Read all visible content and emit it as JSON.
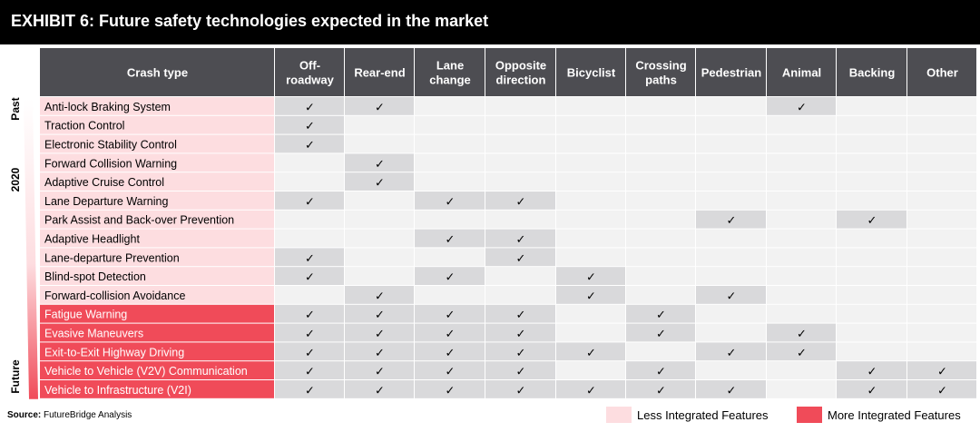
{
  "title": "EXHIBIT 6: Future safety technologies expected in the market",
  "source_label": "Source:",
  "source_text": "FutureBridge Analysis",
  "axis": {
    "top": "Past",
    "middle": "2020",
    "bottom": "Future"
  },
  "legend": [
    {
      "label": "Less Integrated Features",
      "color": "#fddde0"
    },
    {
      "label": "More Integrated Features",
      "color": "#f04b59"
    }
  ],
  "check_mark": "✓",
  "chart_data": {
    "type": "table",
    "title": "EXHIBIT 6: Future safety technologies expected in the market",
    "row_header": "Crash type",
    "columns": [
      [
        "Off-",
        "roadway"
      ],
      [
        "Rear-end"
      ],
      [
        "Lane",
        "change"
      ],
      [
        "Opposite",
        "direction"
      ],
      [
        "Bicyclist"
      ],
      [
        "Crossing",
        "paths"
      ],
      [
        "Pedestrian"
      ],
      [
        "Animal"
      ],
      [
        "Backing"
      ],
      [
        "Other"
      ]
    ],
    "rows": [
      {
        "name": "Anti-lock Braking System",
        "group": "less",
        "checks": [
          1,
          1,
          0,
          0,
          0,
          0,
          0,
          1,
          0,
          0
        ]
      },
      {
        "name": "Traction Control",
        "group": "less",
        "checks": [
          1,
          0,
          0,
          0,
          0,
          0,
          0,
          0,
          0,
          0
        ]
      },
      {
        "name": "Electronic Stability Control",
        "group": "less",
        "checks": [
          1,
          0,
          0,
          0,
          0,
          0,
          0,
          0,
          0,
          0
        ]
      },
      {
        "name": "Forward Collision Warning",
        "group": "less",
        "checks": [
          0,
          1,
          0,
          0,
          0,
          0,
          0,
          0,
          0,
          0
        ]
      },
      {
        "name": "Adaptive Cruise Control",
        "group": "less",
        "checks": [
          0,
          1,
          0,
          0,
          0,
          0,
          0,
          0,
          0,
          0
        ]
      },
      {
        "name": "Lane Departure Warning",
        "group": "less",
        "checks": [
          1,
          0,
          1,
          1,
          0,
          0,
          0,
          0,
          0,
          0
        ]
      },
      {
        "name": "Park Assist and Back-over Prevention",
        "group": "less",
        "checks": [
          0,
          0,
          0,
          0,
          0,
          0,
          1,
          0,
          1,
          0
        ]
      },
      {
        "name": "Adaptive Headlight",
        "group": "less",
        "checks": [
          0,
          0,
          1,
          1,
          0,
          0,
          0,
          0,
          0,
          0
        ]
      },
      {
        "name": "Lane-departure Prevention",
        "group": "less",
        "checks": [
          1,
          0,
          0,
          1,
          0,
          0,
          0,
          0,
          0,
          0
        ]
      },
      {
        "name": "Blind-spot Detection",
        "group": "less",
        "checks": [
          1,
          0,
          1,
          0,
          1,
          0,
          0,
          0,
          0,
          0
        ]
      },
      {
        "name": "Forward-collision Avoidance",
        "group": "less",
        "checks": [
          0,
          1,
          0,
          0,
          1,
          0,
          1,
          0,
          0,
          0
        ]
      },
      {
        "name": "Fatigue Warning",
        "group": "more",
        "checks": [
          1,
          1,
          1,
          1,
          0,
          1,
          0,
          0,
          0,
          0
        ]
      },
      {
        "name": "Evasive Maneuvers",
        "group": "more",
        "checks": [
          1,
          1,
          1,
          1,
          0,
          1,
          0,
          1,
          0,
          0
        ]
      },
      {
        "name": "Exit-to-Exit Highway Driving",
        "group": "more",
        "checks": [
          1,
          1,
          1,
          1,
          1,
          0,
          1,
          1,
          0,
          0
        ]
      },
      {
        "name": "Vehicle to Vehicle (V2V) Communication",
        "group": "more",
        "checks": [
          1,
          1,
          1,
          1,
          0,
          1,
          0,
          0,
          1,
          1
        ]
      },
      {
        "name": "Vehicle to Infrastructure (V2I)",
        "group": "more",
        "checks": [
          1,
          1,
          1,
          1,
          1,
          1,
          1,
          0,
          1,
          1
        ]
      }
    ],
    "colors": {
      "header_bg": "#4d4d52",
      "less_integrated": "#fddde0",
      "more_integrated": "#f04b59",
      "checked_cell": "#d9d9db",
      "empty_cell": "#f2f2f2"
    }
  }
}
